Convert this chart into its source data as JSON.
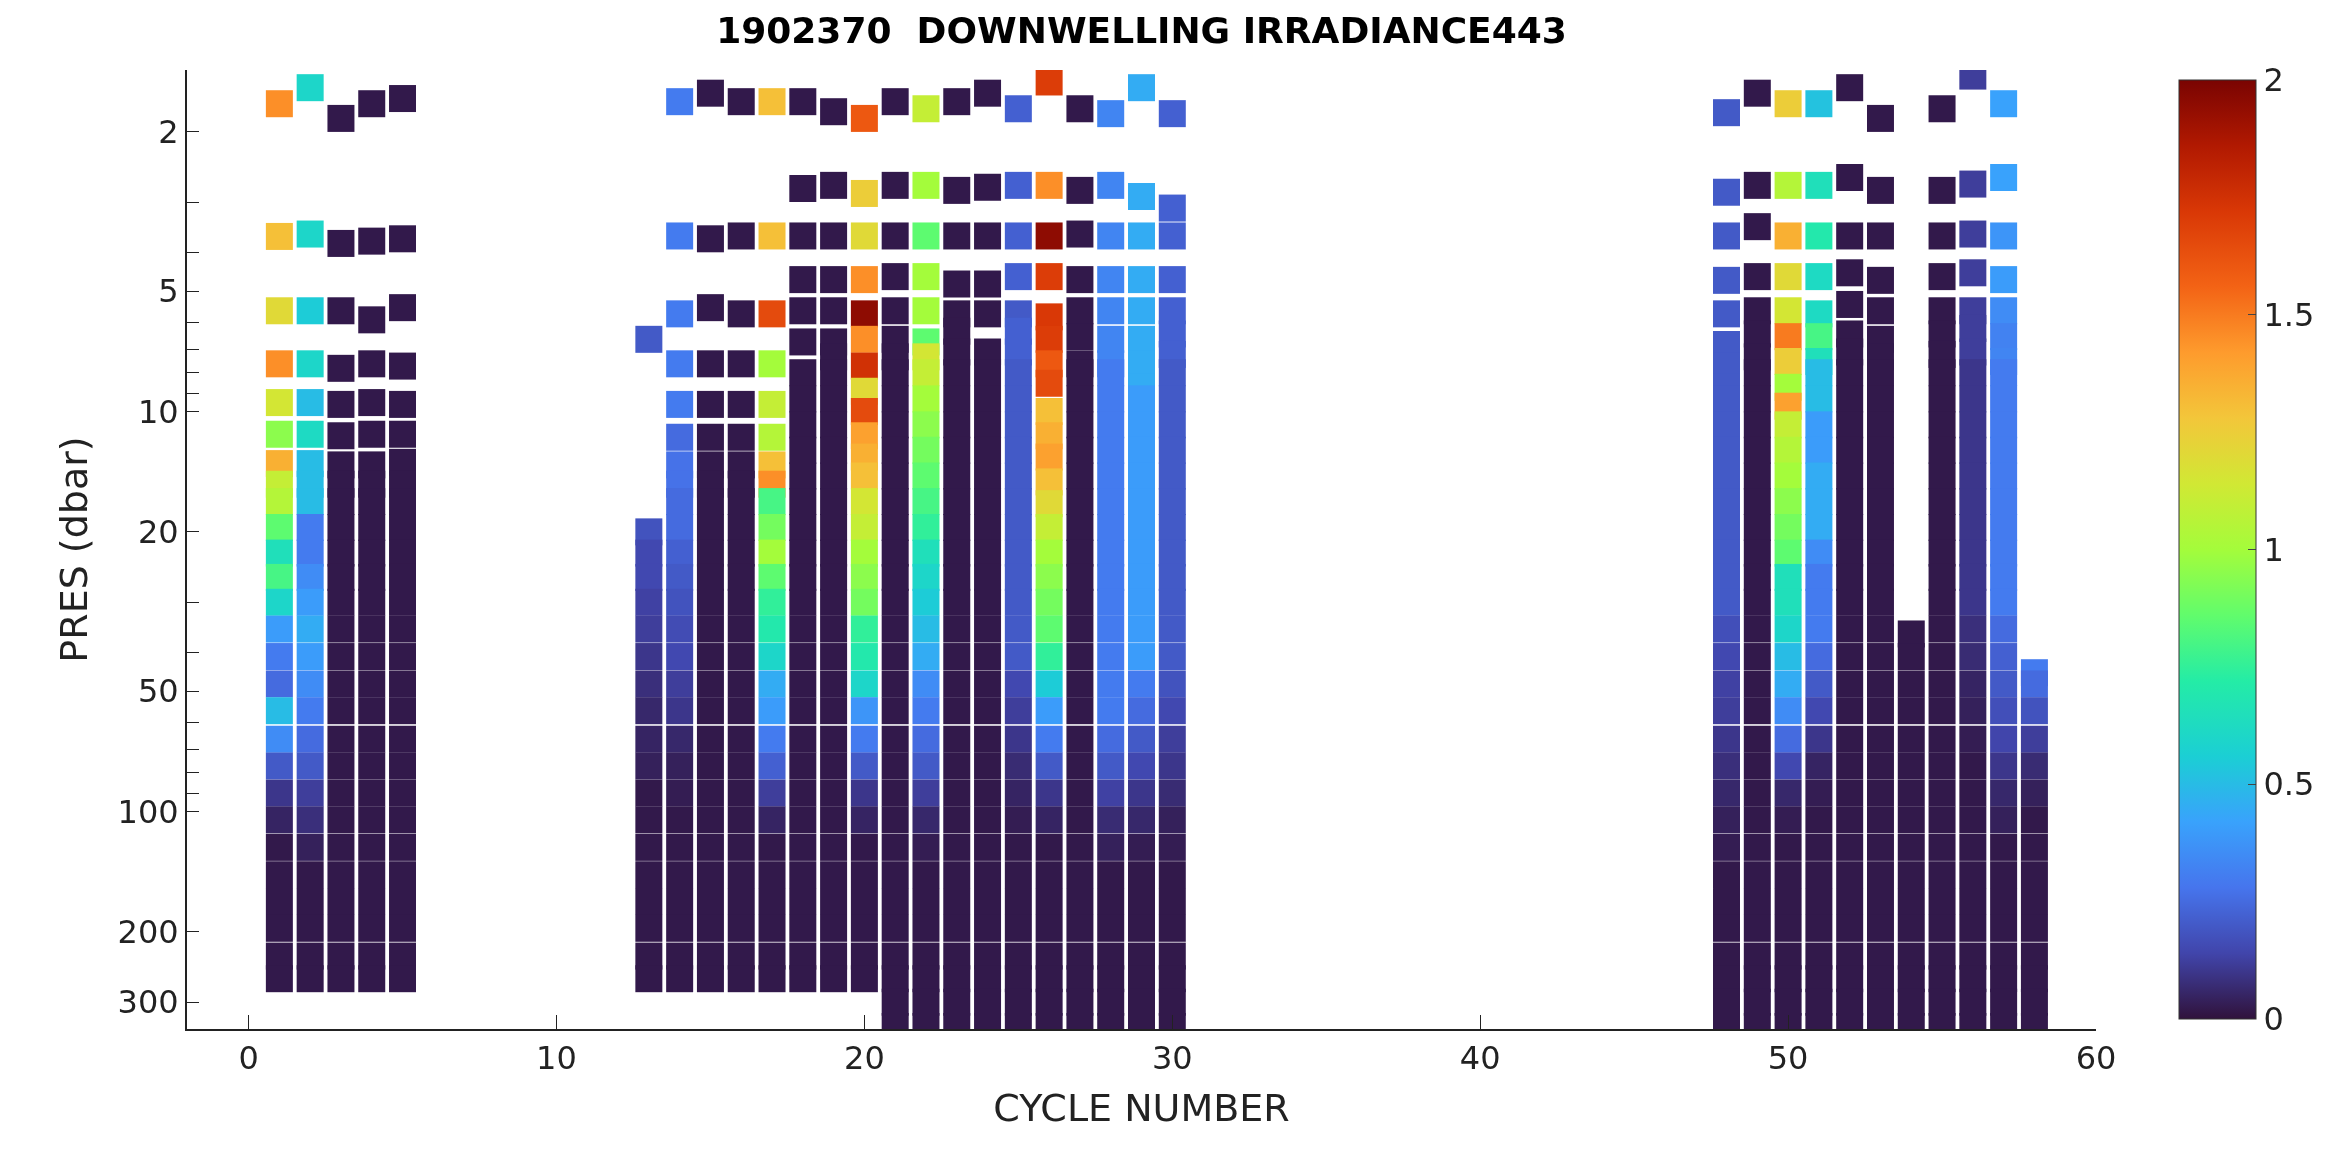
{
  "chart_data": {
    "type": "scatter",
    "title": "1902370  DOWNWELLING IRRADIANCE443",
    "xlabel": "CYCLE NUMBER",
    "ylabel": "PRES (dbar)",
    "log": "y",
    "marker": "square",
    "xlim": [
      -2,
      60
    ],
    "xticks": [
      0,
      10,
      20,
      30,
      40,
      50,
      60
    ],
    "ylim": [
      350,
      1.4
    ],
    "yticks": [
      2,
      {
        "value": 3,
        "label": null
      },
      {
        "value": 4,
        "label": null
      },
      5,
      {
        "value": 6,
        "label": null
      },
      {
        "value": 7,
        "label": null
      },
      {
        "value": 8,
        "label": null
      },
      {
        "value": 9,
        "label": null
      },
      10,
      20,
      {
        "value": 30,
        "label": null
      },
      {
        "value": 40,
        "label": null
      },
      50,
      {
        "value": 60,
        "label": null
      },
      {
        "value": 70,
        "label": null
      },
      {
        "value": 80,
        "label": null
      },
      {
        "value": 90,
        "label": null
      },
      100,
      200,
      300
    ],
    "clim": [
      0,
      2
    ],
    "cticks": [
      0,
      0.5,
      1,
      1.5,
      2
    ],
    "x": [
      1,
      1,
      1,
      1,
      1,
      1,
      1,
      1,
      1,
      1,
      1,
      1,
      1,
      1,
      1,
      1,
      1,
      1,
      1,
      1,
      1,
      1,
      1,
      1,
      1,
      1,
      1,
      2,
      2,
      2,
      2,
      2,
      2,
      2,
      2,
      2,
      2,
      2,
      2,
      2,
      2,
      2,
      2,
      2,
      2,
      2,
      2,
      2,
      2,
      2,
      2,
      2,
      2,
      2,
      3,
      3,
      3,
      3,
      3,
      3,
      3,
      3,
      3,
      3,
      3,
      3,
      3,
      3,
      3,
      3,
      3,
      3,
      3,
      3,
      3,
      3,
      3,
      3,
      3,
      3,
      3,
      4,
      4,
      4,
      4,
      4,
      4,
      4,
      4,
      4,
      4,
      4,
      4,
      4,
      4,
      4,
      4,
      4,
      4,
      4,
      4,
      4,
      4,
      4,
      4,
      4,
      4,
      4,
      5,
      5,
      5,
      5,
      5,
      5,
      5,
      5,
      5,
      5,
      5,
      5,
      5,
      5,
      5,
      5,
      5,
      5,
      5,
      5,
      5,
      5,
      5,
      5,
      5,
      5,
      5,
      13,
      13,
      13,
      13,
      13,
      13,
      13,
      13,
      13,
      13,
      13,
      13,
      13,
      13,
      13,
      13,
      13,
      13,
      13,
      14,
      14,
      14,
      14,
      14,
      14,
      14,
      14,
      14,
      14,
      14,
      14,
      14,
      14,
      14,
      14,
      14,
      14,
      14,
      14,
      14,
      14,
      14,
      14,
      14,
      14,
      14,
      15,
      15,
      15,
      15,
      15,
      15,
      15,
      15,
      15,
      15,
      15,
      15,
      15,
      15,
      15,
      15,
      15,
      15,
      15,
      15,
      15,
      15,
      15,
      15,
      15,
      15,
      15,
      16,
      16,
      16,
      16,
      16,
      16,
      16,
      16,
      16,
      16,
      16,
      16,
      16,
      16,
      16,
      16,
      16,
      16,
      16,
      16,
      16,
      16,
      16,
      16,
      16,
      16,
      16,
      17,
      17,
      17,
      17,
      17,
      17,
      17,
      17,
      17,
      17,
      17,
      17,
      17,
      17,
      17,
      17,
      17,
      17,
      17,
      17,
      17,
      17,
      17,
      17,
      17,
      17,
      17,
      18,
      18,
      18,
      18,
      18,
      18,
      18,
      18,
      18,
      18,
      18,
      18,
      18,
      18,
      18,
      18,
      18,
      18,
      18,
      18,
      18,
      18,
      18,
      18,
      18,
      18,
      18,
      18,
      18,
      18,
      19,
      19,
      19,
      19,
      19,
      19,
      19,
      19,
      19,
      19,
      19,
      19,
      19,
      19,
      19,
      19,
      19,
      19,
      19,
      19,
      19,
      19,
      19,
      19,
      19,
      19,
      19,
      19,
      19,
      19,
      19,
      20,
      20,
      20,
      20,
      20,
      20,
      20,
      20,
      20,
      20,
      20,
      20,
      20,
      20,
      20,
      20,
      20,
      20,
      20,
      20,
      20,
      20,
      20,
      20,
      20,
      20,
      20,
      20,
      20,
      20,
      20,
      21,
      21,
      21,
      21,
      21,
      21,
      21,
      21,
      21,
      21,
      21,
      21,
      21,
      21,
      21,
      21,
      21,
      21,
      21,
      21,
      21,
      21,
      21,
      21,
      21,
      21,
      21,
      21,
      21,
      21,
      21,
      21,
      21,
      22,
      22,
      22,
      22,
      22,
      22,
      22,
      22,
      22,
      22,
      22,
      22,
      22,
      22,
      22,
      22,
      22,
      22,
      22,
      22,
      22,
      22,
      22,
      22,
      22,
      22,
      22,
      22,
      22,
      22,
      22,
      22,
      22,
      23,
      23,
      23,
      23,
      23,
      23,
      23,
      23,
      23,
      23,
      23,
      23,
      23,
      23,
      23,
      23,
      23,
      23,
      23,
      23,
      23,
      23,
      23,
      23,
      23,
      23,
      23,
      23,
      23,
      23,
      23,
      23,
      23,
      24,
      24,
      24,
      24,
      24,
      24,
      24,
      24,
      24,
      24,
      24,
      24,
      24,
      24,
      24,
      24,
      24,
      24,
      24,
      24,
      24,
      24,
      24,
      24,
      24,
      24,
      24,
      24,
      24,
      24,
      24,
      24,
      25,
      25,
      25,
      25,
      25,
      25,
      25,
      25,
      25,
      25,
      25,
      25,
      25,
      25,
      25,
      25,
      25,
      25,
      25,
      25,
      25,
      25,
      25,
      25,
      25,
      25,
      25,
      25,
      25,
      25,
      25,
      25,
      25,
      26,
      26,
      26,
      26,
      26,
      26,
      26,
      26,
      26,
      26,
      26,
      26,
      26,
      26,
      26,
      26,
      26,
      26,
      26,
      26,
      26,
      26,
      26,
      26,
      26,
      26,
      26,
      26,
      26,
      26,
      26,
      26,
      26,
      27,
      27,
      27,
      27,
      27,
      27,
      27,
      27,
      27,
      27,
      27,
      27,
      27,
      27,
      27,
      27,
      27,
      27,
      27,
      27,
      27,
      27,
      27,
      27,
      27,
      27,
      27,
      27,
      27,
      27,
      27,
      27,
      27,
      28,
      28,
      28,
      28,
      28,
      28,
      28,
      28,
      28,
      28,
      28,
      28,
      28,
      28,
      28,
      28,
      28,
      28,
      28,
      28,
      28,
      28,
      28,
      28,
      28,
      28,
      28,
      28,
      28,
      28,
      28,
      28,
      28,
      29,
      29,
      29,
      29,
      29,
      29,
      29,
      29,
      29,
      29,
      29,
      29,
      29,
      29,
      29,
      29,
      29,
      29,
      29,
      29,
      29,
      29,
      29,
      29,
      29,
      29,
      29,
      29,
      29,
      29,
      29,
      29,
      29,
      30,
      30,
      30,
      30,
      30,
      30,
      30,
      30,
      30,
      30,
      30,
      30,
      30,
      30,
      30,
      30,
      30,
      30,
      30,
      30,
      30,
      30,
      30,
      30,
      30,
      30,
      30,
      30,
      30,
      30,
      30,
      30,
      30,
      48,
      48,
      48,
      48,
      48,
      48,
      48,
      48,
      48,
      48,
      48,
      48,
      48,
      48,
      48,
      48,
      48,
      48,
      48,
      48,
      48,
      48,
      48,
      48,
      48,
      48,
      48,
      48,
      48,
      48,
      48,
      48,
      48,
      49,
      49,
      49,
      49,
      49,
      49,
      49,
      49,
      49,
      49,
      49,
      49,
      49,
      49,
      49,
      49,
      49,
      49,
      49,
      49,
      49,
      49,
      49,
      49,
      49,
      49,
      49,
      49,
      49,
      49,
      49,
      49,
      49,
      50,
      50,
      50,
      50,
      50,
      50,
      50,
      50,
      50,
      50,
      50,
      50,
      50,
      50,
      50,
      50,
      50,
      50,
      50,
      50,
      50,
      50,
      50,
      50,
      50,
      50,
      50,
      50,
      50,
      50,
      50,
      50,
      50,
      51,
      51,
      51,
      51,
      51,
      51,
      51,
      51,
      51,
      51,
      51,
      51,
      51,
      51,
      51,
      51,
      51,
      51,
      51,
      51,
      51,
      51,
      51,
      51,
      51,
      51,
      51,
      51,
      51,
      51,
      51,
      51,
      51,
      52,
      52,
      52,
      52,
      52,
      52,
      52,
      52,
      52,
      52,
      52,
      52,
      52,
      52,
      52,
      52,
      52,
      52,
      52,
      52,
      52,
      52,
      52,
      52,
      52,
      52,
      52,
      52,
      52,
      52,
      52,
      52,
      52,
      53,
      53,
      53,
      53,
      53,
      53,
      53,
      53,
      53,
      53,
      53,
      53,
      53,
      53,
      53,
      53,
      53,
      53,
      53,
      53,
      53,
      53,
      53,
      53,
      53,
      53,
      53,
      53,
      53,
      53,
      53,
      53,
      53,
      54,
      54,
      54,
      54,
      54,
      54,
      54,
      54,
      54,
      54,
      54,
      54,
      54,
      54,
      54,
      54,
      55,
      55,
      55,
      55,
      55,
      55,
      55,
      55,
      55,
      55,
      55,
      55,
      55,
      55,
      55,
      55,
      55,
      55,
      55,
      55,
      55,
      55,
      55,
      55,
      55,
      55,
      55,
      55,
      55,
      55,
      55,
      55,
      55,
      56,
      56,
      56,
      56,
      56,
      56,
      56,
      56,
      56,
      56,
      56,
      56,
      56,
      56,
      56,
      56,
      56,
      56,
      56,
      56,
      56,
      56,
      56,
      56,
      56,
      56,
      56,
      56,
      56,
      56,
      56,
      56,
      56,
      57,
      57,
      57,
      57,
      57,
      57,
      57,
      57,
      57,
      57,
      57,
      57,
      57,
      57,
      57,
      57,
      57,
      57,
      57,
      57,
      57,
      57,
      57,
      57,
      57,
      57,
      57,
      57,
      57,
      57,
      57,
      57,
      57,
      58,
      58,
      58,
      58,
      58,
      58,
      58,
      58,
      58,
      58,
      58,
      58,
      58,
      58,
      58
    ],
    "values": [
      1.7,
      3.65,
      5.6,
      7.6,
      9.5,
      11.4,
      13.5,
      15.2,
      16.8,
      19.5,
      22.6,
      26,
      30,
      35,
      41,
      48,
      56,
      66,
      77,
      90,
      105,
      123,
      144,
      168,
      196,
      230,
      262,
      1.55,
      3.6,
      5.6,
      7.6,
      9.5,
      11.4,
      13.5,
      15.2,
      16.8,
      19.5,
      22.6,
      26,
      30,
      35,
      41,
      48,
      56,
      66,
      77,
      90,
      105,
      123,
      144,
      168,
      196,
      230,
      262,
      1.85,
      3.8,
      5.6,
      7.8,
      9.6,
      11.5,
      13.6,
      15.2,
      16.8,
      19.5,
      22.6,
      26,
      30,
      35,
      41,
      48,
      56,
      66,
      77,
      90,
      105,
      123,
      144,
      168,
      196,
      230,
      262,
      1.7,
      3.75,
      5.9,
      7.6,
      9.5,
      11.4,
      13.6,
      15.2,
      16.8,
      19.5,
      22.6,
      26,
      30,
      35,
      41,
      48,
      56,
      66,
      77,
      90,
      105,
      123,
      144,
      168,
      196,
      230,
      262,
      1.65,
      3.7,
      5.5,
      7.7,
      9.6,
      11.4,
      13.4,
      15.2,
      16.8,
      19.5,
      22.6,
      26,
      30,
      35,
      41,
      48,
      56,
      66,
      77,
      90,
      105,
      123,
      144,
      168,
      196,
      230,
      262,
      6.6,
      20,
      22.6,
      26,
      30,
      35,
      41,
      48,
      56,
      66,
      77,
      90,
      105,
      123,
      144,
      168,
      196,
      230,
      262,
      1.68,
      3.64,
      5.7,
      7.6,
      9.6,
      11.6,
      13.6,
      15.2,
      16.8,
      19.5,
      22.6,
      26,
      30,
      35,
      41,
      48,
      56,
      66,
      77,
      90,
      105,
      123,
      144,
      168,
      196,
      230,
      262,
      1.6,
      3.7,
      5.5,
      7.6,
      9.6,
      11.6,
      13.6,
      15.2,
      16.8,
      19.5,
      22.6,
      26,
      30,
      35,
      41,
      48,
      56,
      66,
      77,
      90,
      105,
      123,
      144,
      168,
      196,
      230,
      262,
      1.68,
      3.64,
      5.7,
      7.6,
      9.6,
      11.6,
      13.6,
      15.2,
      16.8,
      19.5,
      22.6,
      26,
      30,
      35,
      41,
      48,
      56,
      66,
      77,
      90,
      105,
      123,
      144,
      168,
      196,
      230,
      262,
      1.68,
      3.64,
      5.7,
      7.6,
      9.6,
      11.6,
      13.6,
      15.2,
      16.8,
      19.5,
      22.6,
      26,
      30,
      35,
      41,
      48,
      56,
      66,
      77,
      90,
      105,
      123,
      144,
      168,
      196,
      230,
      262,
      1.68,
      2.77,
      3.64,
      4.68,
      5.6,
      6.7,
      8,
      9.3,
      10.8,
      12.5,
      14.5,
      16.8,
      19.5,
      22.6,
      26,
      30,
      35,
      41,
      48,
      56,
      66,
      77,
      90,
      105,
      123,
      144,
      168,
      196,
      230,
      262,
      1.78,
      2.72,
      3.64,
      4.68,
      5.6,
      6.7,
      7.3,
      8,
      9.3,
      10.8,
      12.5,
      14.5,
      16.8,
      19.5,
      22.6,
      26,
      30,
      35,
      41,
      48,
      56,
      66,
      77,
      90,
      105,
      123,
      144,
      168,
      196,
      230,
      262,
      1.85,
      2.85,
      3.64,
      4.68,
      5.7,
      6.6,
      7.7,
      8.9,
      10,
      11.5,
      13,
      14.5,
      16.8,
      19.5,
      22.6,
      26,
      30,
      35,
      41,
      48,
      56,
      66,
      77,
      90,
      105,
      123,
      144,
      168,
      196,
      230,
      262,
      1.68,
      2.72,
      3.64,
      4.6,
      5.6,
      6.6,
      7.3,
      8,
      9.3,
      10.8,
      12.5,
      14.5,
      16.8,
      19.5,
      22.6,
      26,
      30,
      35,
      41,
      48,
      56,
      66,
      77,
      90,
      105,
      123,
      144,
      168,
      196,
      230,
      262,
      300,
      345,
      1.75,
      2.72,
      3.64,
      4.6,
      5.6,
      6.7,
      7.3,
      8,
      9.3,
      10.8,
      12.5,
      14.5,
      16.8,
      19.5,
      22.6,
      26,
      30,
      35,
      41,
      48,
      56,
      66,
      77,
      90,
      105,
      123,
      144,
      168,
      196,
      230,
      262,
      300,
      345,
      1.68,
      2.8,
      3.64,
      4.8,
      5.7,
      6.3,
      7.1,
      8,
      9.3,
      10.8,
      12.5,
      14.5,
      16.8,
      19.5,
      22.6,
      26,
      30,
      35,
      41,
      48,
      56,
      66,
      77,
      90,
      105,
      123,
      144,
      168,
      196,
      230,
      262,
      300,
      345,
      1.6,
      2.75,
      3.64,
      4.8,
      5.7,
      7.1,
      8,
      9.3,
      10.8,
      12.5,
      14.5,
      16.8,
      19.5,
      22.6,
      26,
      30,
      35,
      41,
      48,
      56,
      66,
      77,
      90,
      105,
      123,
      144,
      168,
      196,
      230,
      262,
      300,
      345,
      1.75,
      2.72,
      3.64,
      4.6,
      5.7,
      6.3,
      7.1,
      8,
      9.3,
      10.8,
      12.5,
      14.5,
      16.8,
      19.5,
      22.6,
      26,
      30,
      35,
      41,
      48,
      56,
      66,
      77,
      90,
      105,
      123,
      144,
      168,
      196,
      230,
      262,
      300,
      345,
      1.5,
      2.72,
      3.64,
      4.6,
      5.8,
      6.6,
      7.6,
      8.5,
      10,
      11.5,
      13,
      15,
      17,
      19.5,
      22.6,
      26,
      30,
      35,
      41,
      48,
      56,
      66,
      77,
      90,
      105,
      123,
      144,
      168,
      196,
      230,
      262,
      300,
      345,
      1.75,
      2.8,
      3.6,
      4.68,
      5.6,
      6.5,
      7.6,
      8,
      9.3,
      10.8,
      12.5,
      14.5,
      16.8,
      19.5,
      22.6,
      26,
      30,
      35,
      41,
      48,
      56,
      66,
      77,
      90,
      105,
      123,
      144,
      168,
      196,
      230,
      262,
      300,
      345,
      1.8,
      2.72,
      3.64,
      4.68,
      5.6,
      6.6,
      7.6,
      8,
      9.3,
      10.8,
      12.5,
      14.5,
      16.8,
      19.5,
      22.6,
      26,
      30,
      35,
      41,
      48,
      56,
      66,
      77,
      90,
      105,
      123,
      144,
      168,
      196,
      230,
      262,
      300,
      345,
      1.55,
      2.9,
      3.64,
      4.68,
      5.6,
      6.6,
      7.6,
      8.7,
      9.3,
      10.8,
      12.5,
      14.5,
      16.8,
      19.5,
      22.6,
      26,
      30,
      35,
      41,
      48,
      56,
      66,
      77,
      90,
      105,
      123,
      144,
      168,
      196,
      230,
      262,
      300,
      345,
      1.8,
      3.1,
      3.64,
      4.68,
      5.6,
      6.4,
      7.2,
      8,
      9.3,
      10.8,
      12.5,
      14.5,
      16.8,
      19.5,
      22.6,
      26,
      30,
      35,
      41,
      48,
      56,
      66,
      77,
      90,
      105,
      123,
      144,
      168,
      196,
      230,
      262,
      300,
      345,
      1.79,
      2.83,
      3.64,
      4.7,
      5.7,
      6.8,
      7.7,
      8.7,
      9.3,
      10.8,
      12.5,
      14.5,
      16.8,
      19.5,
      22.6,
      26,
      30,
      35,
      41,
      48,
      56,
      66,
      77,
      90,
      105,
      123,
      144,
      168,
      196,
      230,
      262,
      300,
      345,
      1.6,
      2.72,
      3.45,
      4.6,
      5.6,
      6.4,
      7.3,
      8,
      9.3,
      10.8,
      12.5,
      14.5,
      16.8,
      19.5,
      22.6,
      26,
      30,
      35,
      41,
      48,
      56,
      66,
      77,
      90,
      105,
      123,
      144,
      168,
      196,
      230,
      262,
      300,
      345,
      1.7,
      2.72,
      3.64,
      4.6,
      5.6,
      6.5,
      7.5,
      8.7,
      9.7,
      10.8,
      12.5,
      14.5,
      16.8,
      19.5,
      22.6,
      26,
      30,
      35,
      41,
      48,
      56,
      66,
      77,
      90,
      105,
      123,
      144,
      168,
      196,
      230,
      262,
      300,
      345,
      1.7,
      2.72,
      3.64,
      4.6,
      5.7,
      6.5,
      7.5,
      8,
      9.3,
      10.8,
      12.5,
      14.5,
      16.8,
      19.5,
      22.6,
      26,
      30,
      35,
      41,
      48,
      56,
      66,
      77,
      90,
      105,
      123,
      144,
      168,
      196,
      230,
      262,
      300,
      345,
      1.55,
      2.6,
      3.64,
      4.5,
      5.4,
      6.4,
      7.1,
      8,
      9.3,
      10.8,
      12.5,
      14.5,
      16.8,
      19.5,
      22.6,
      26,
      30,
      35,
      41,
      48,
      56,
      66,
      77,
      90,
      105,
      123,
      144,
      168,
      196,
      230,
      262,
      300,
      345,
      1.85,
      2.8,
      3.64,
      4.7,
      5.6,
      6.6,
      7.3,
      8,
      9.3,
      10.8,
      12.5,
      14.5,
      16.8,
      19.5,
      22.6,
      26,
      30,
      35,
      41,
      48,
      56,
      66,
      77,
      90,
      105,
      123,
      144,
      168,
      196,
      230,
      262,
      300,
      345,
      36,
      41,
      48,
      56,
      66,
      77,
      90,
      105,
      123,
      144,
      168,
      196,
      230,
      262,
      300,
      345,
      1.75,
      2.8,
      3.64,
      4.6,
      5.6,
      6.4,
      7.2,
      8,
      9.3,
      10.8,
      12.5,
      14.5,
      16.8,
      19.5,
      22.6,
      26,
      30,
      35,
      41,
      48,
      56,
      66,
      77,
      90,
      105,
      123,
      144,
      168,
      196,
      230,
      262,
      300,
      345,
      1.45,
      2.7,
      3.6,
      4.5,
      5.6,
      6.2,
      7.1,
      8,
      9.3,
      10.8,
      12.5,
      14.5,
      16.8,
      19.5,
      22.6,
      26,
      30,
      35,
      41,
      48,
      56,
      66,
      77,
      90,
      105,
      123,
      144,
      168,
      196,
      230,
      262,
      300,
      345,
      1.7,
      2.6,
      3.64,
      4.68,
      5.6,
      6.5,
      7.5,
      8,
      9.3,
      10.8,
      12.5,
      14.5,
      16.8,
      19.5,
      22.6,
      26,
      30,
      35,
      41,
      48,
      56,
      66,
      77,
      90,
      105,
      123,
      144,
      168,
      196,
      230,
      262,
      300,
      345,
      45,
      48,
      56,
      66,
      77,
      90,
      105,
      123,
      144,
      168,
      196,
      230,
      262,
      300,
      345
    ],
    "cvalues": [
      1.45,
      1.3,
      1.2,
      1.45,
      1.15,
      0.95,
      1.35,
      1.1,
      1.05,
      0.85,
      0.65,
      0.8,
      0.6,
      0.4,
      0.3,
      0.25,
      0.5,
      0.35,
      0.2,
      0.1,
      0.05,
      0.02,
      0.02,
      0.02,
      0.02,
      0.02,
      0.02,
      0.6,
      0.6,
      0.55,
      0.6,
      0.5,
      0.62,
      0.5,
      0.5,
      0.5,
      0.3,
      0.3,
      0.35,
      0.4,
      0.45,
      0.4,
      0.35,
      0.3,
      0.25,
      0.2,
      0.12,
      0.08,
      0.04,
      0.02,
      0.02,
      0.02,
      0.02,
      0.02,
      0.02,
      0.02,
      0.02,
      0.02,
      0.02,
      0.02,
      0.02,
      0.02,
      0.02,
      0.02,
      0.02,
      0.02,
      0.02,
      0.02,
      0.02,
      0.02,
      0.02,
      0.02,
      0.02,
      0.02,
      0.02,
      0.02,
      0.02,
      0.02,
      0.02,
      0.02,
      0.02,
      0.02,
      0.02,
      0.02,
      0.02,
      0.02,
      0.02,
      0.02,
      0.02,
      0.02,
      0.02,
      0.02,
      0.02,
      0.02,
      0.02,
      0.02,
      0.02,
      0.02,
      0.02,
      0.02,
      0.02,
      0.02,
      0.02,
      0.02,
      0.02,
      0.02,
      0.02,
      0.02,
      0.02,
      0.02,
      0.02,
      0.02,
      0.02,
      0.02,
      0.02,
      0.02,
      0.02,
      0.02,
      0.02,
      0.02,
      0.02,
      0.02,
      0.02,
      0.02,
      0.02,
      0.02,
      0.02,
      0.02,
      0.02,
      0.02,
      0.02,
      0.02,
      0.02,
      0.02,
      0.02,
      0.2,
      0.18,
      0.15,
      0.15,
      0.13,
      0.12,
      0.1,
      0.08,
      0.06,
      0.05,
      0.04,
      0.02,
      0.02,
      0.02,
      0.02,
      0.02,
      0.02,
      0.02,
      0.02,
      0.3,
      0.3,
      0.3,
      0.3,
      0.3,
      0.25,
      0.27,
      0.27,
      0.25,
      0.25,
      0.22,
      0.2,
      0.18,
      0.16,
      0.15,
      0.12,
      0.1,
      0.06,
      0.04,
      0.03,
      0.02,
      0.02,
      0.02,
      0.02,
      0.02,
      0.02,
      0.02,
      0.02,
      0.02,
      0.02,
      0.02,
      0.02,
      0.02,
      0.02,
      0.02,
      0.02,
      0.02,
      0.02,
      0.02,
      0.02,
      0.02,
      0.02,
      0.02,
      0.02,
      0.02,
      0.02,
      0.02,
      0.02,
      0.02,
      0.02,
      0.02,
      0.02,
      0.02,
      0.02,
      0.02,
      0.02,
      0.02,
      0.02,
      0.02,
      0.02,
      0.02,
      0.02,
      0.02,
      0.02,
      0.02,
      0.02,
      0.02,
      0.02,
      0.02,
      0.02,
      0.02,
      0.02,
      0.02,
      0.02,
      0.02,
      0.02,
      0.02,
      0.02,
      0.02,
      0.02,
      0.02,
      1.3,
      1.3,
      1.65,
      1.0,
      1.1,
      1.05,
      1.3,
      1.45,
      0.8,
      0.9,
      1.0,
      0.85,
      0.75,
      0.7,
      0.6,
      0.45,
      0.4,
      0.3,
      0.22,
      0.12,
      0.05,
      0.02,
      0.02,
      0.02,
      0.02,
      0.02,
      0.02,
      0.02,
      0.02,
      0.02,
      0.02,
      0.02,
      0.02,
      0.02,
      0.02,
      0.02,
      0.02,
      0.02,
      0.02,
      0.02,
      0.02,
      0.02,
      0.02,
      0.02,
      0.02,
      0.02,
      0.02,
      0.02,
      0.02,
      0.02,
      0.02,
      0.02,
      0.02,
      0.02,
      0.02,
      0.02,
      0.02,
      0.02,
      0.02,
      0.02,
      0.02,
      0.02,
      0.02,
      0.02,
      0.02,
      0.02,
      0.02,
      0.02,
      0.02,
      0.02,
      0.02,
      0.02,
      0.02,
      0.02,
      0.02,
      0.02,
      0.02,
      0.02,
      0.02,
      0.02,
      0.02,
      0.02,
      0.02,
      0.02,
      0.02,
      0.02,
      0.02,
      0.02,
      1.6,
      1.25,
      1.2,
      1.45,
      1.95,
      1.45,
      1.75,
      1.2,
      1.65,
      1.4,
      1.35,
      1.3,
      1.15,
      1.1,
      1.0,
      0.95,
      0.9,
      0.75,
      0.7,
      0.6,
      0.38,
      0.3,
      0.2,
      0.1,
      0.05,
      0.02,
      0.02,
      0.02,
      0.02,
      0.02,
      0.02,
      0.02,
      0.02,
      0.02,
      0.02,
      0.02,
      0.02,
      0.02,
      0.02,
      0.02,
      0.02,
      0.02,
      0.02,
      0.02,
      0.02,
      0.02,
      0.02,
      0.02,
      0.02,
      0.02,
      0.02,
      0.02,
      0.02,
      0.02,
      0.02,
      0.02,
      0.02,
      0.02,
      0.02,
      0.02,
      0.02,
      0.02,
      0.02,
      0.02,
      1.1,
      1.0,
      0.85,
      1.0,
      1.0,
      0.85,
      1.15,
      1.1,
      1.0,
      0.95,
      0.9,
      0.85,
      0.8,
      0.75,
      0.65,
      0.6,
      0.55,
      0.5,
      0.45,
      0.35,
      0.3,
      0.25,
      0.2,
      0.12,
      0.06,
      0.03,
      0.02,
      0.02,
      0.02,
      0.02,
      0.02,
      0.02,
      0.02,
      0.02,
      0.02,
      0.02,
      0.02,
      0.02,
      0.02,
      0.02,
      0.02,
      0.02,
      0.02,
      0.02,
      0.02,
      0.02,
      0.02,
      0.02,
      0.02,
      0.02,
      0.02,
      0.02,
      0.02,
      0.02,
      0.02,
      0.02,
      0.02,
      0.02,
      0.02,
      0.02,
      0.02,
      0.02,
      0.02,
      0.02,
      0.02,
      0.02,
      0.02,
      0.02,
      0.02,
      0.02,
      0.02,
      0.02,
      0.02,
      0.02,
      0.02,
      0.02,
      0.02,
      0.02,
      0.02,
      0.02,
      0.02,
      0.02,
      0.02,
      0.02,
      0.02,
      0.02,
      0.02,
      0.02,
      0.02,
      0.02,
      0.02,
      0.02,
      0.02,
      0.02,
      0.02,
      0.02,
      0.02,
      0.02,
      0.22,
      0.22,
      0.22,
      0.22,
      0.2,
      0.22,
      0.22,
      0.2,
      0.2,
      0.2,
      0.2,
      0.2,
      0.2,
      0.2,
      0.2,
      0.2,
      0.2,
      0.2,
      0.2,
      0.15,
      0.12,
      0.1,
      0.07,
      0.05,
      0.03,
      0.02,
      0.02,
      0.02,
      0.02,
      0.02,
      0.02,
      0.02,
      0.02,
      1.7,
      1.45,
      1.95,
      1.7,
      1.72,
      1.7,
      1.6,
      1.65,
      1.3,
      1.35,
      1.4,
      1.3,
      1.2,
      1.1,
      1.0,
      0.95,
      0.9,
      0.85,
      0.75,
      0.55,
      0.4,
      0.3,
      0.2,
      0.1,
      0.05,
      0.02,
      0.02,
      0.02,
      0.02,
      0.02,
      0.02,
      0.02,
      0.02,
      0.02,
      0.02,
      0.02,
      0.02,
      0.02,
      0.02,
      0.02,
      0.02,
      0.02,
      0.02,
      0.02,
      0.02,
      0.02,
      0.02,
      0.02,
      0.02,
      0.02,
      0.02,
      0.02,
      0.02,
      0.02,
      0.02,
      0.02,
      0.02,
      0.02,
      0.02,
      0.02,
      0.02,
      0.02,
      0.02,
      0.02,
      0.02,
      0.02,
      0.33,
      0.33,
      0.33,
      0.33,
      0.33,
      0.33,
      0.33,
      0.3,
      0.3,
      0.3,
      0.3,
      0.3,
      0.3,
      0.3,
      0.3,
      0.3,
      0.3,
      0.3,
      0.3,
      0.3,
      0.3,
      0.25,
      0.2,
      0.13,
      0.07,
      0.04,
      0.02,
      0.02,
      0.02,
      0.02,
      0.02,
      0.02,
      0.02,
      0.45,
      0.45,
      0.45,
      0.45,
      0.45,
      0.45,
      0.45,
      0.45,
      0.4,
      0.4,
      0.4,
      0.4,
      0.4,
      0.4,
      0.4,
      0.4,
      0.4,
      0.4,
      0.4,
      0.3,
      0.25,
      0.2,
      0.15,
      0.1,
      0.06,
      0.03,
      0.02,
      0.02,
      0.02,
      0.02,
      0.02,
      0.02,
      0.02,
      0.22,
      0.22,
      0.22,
      0.22,
      0.22,
      0.22,
      0.22,
      0.2,
      0.2,
      0.2,
      0.2,
      0.2,
      0.2,
      0.2,
      0.2,
      0.2,
      0.2,
      0.2,
      0.2,
      0.18,
      0.15,
      0.12,
      0.1,
      0.07,
      0.04,
      0.03,
      0.02,
      0.02,
      0.02,
      0.02,
      0.02,
      0.02,
      0.02,
      0.2,
      0.2,
      0.2,
      0.2,
      0.2,
      0.2,
      0.2,
      0.2,
      0.2,
      0.2,
      0.2,
      0.2,
      0.2,
      0.2,
      0.2,
      0.2,
      0.2,
      0.17,
      0.15,
      0.13,
      0.12,
      0.1,
      0.08,
      0.06,
      0.04,
      0.03,
      0.02,
      0.02,
      0.02,
      0.02,
      0.02,
      0.02,
      0.02,
      0.02,
      0.02,
      0.02,
      0.02,
      0.02,
      0.02,
      0.02,
      0.02,
      0.02,
      0.02,
      0.02,
      0.02,
      0.02,
      0.02,
      0.02,
      0.02,
      0.02,
      0.02,
      0.02,
      0.02,
      0.02,
      0.02,
      0.02,
      0.02,
      0.02,
      0.02,
      0.02,
      0.02,
      0.02,
      0.02,
      0.02,
      0.02,
      0.02,
      1.25,
      1.05,
      1.35,
      1.2,
      1.15,
      1.5,
      1.25,
      1.0,
      1.4,
      1.1,
      1.05,
      1.0,
      0.95,
      0.9,
      0.85,
      0.65,
      0.65,
      0.6,
      0.5,
      0.45,
      0.35,
      0.25,
      0.15,
      0.06,
      0.03,
      0.02,
      0.02,
      0.02,
      0.02,
      0.02,
      0.02,
      0.02,
      0.02,
      0.52,
      0.65,
      0.7,
      0.62,
      0.62,
      0.8,
      0.65,
      0.5,
      0.5,
      0.4,
      0.4,
      0.45,
      0.45,
      0.45,
      0.35,
      0.3,
      0.3,
      0.3,
      0.25,
      0.2,
      0.15,
      0.1,
      0.05,
      0.03,
      0.02,
      0.02,
      0.02,
      0.02,
      0.02,
      0.02,
      0.02,
      0.02,
      0.02,
      0.02,
      0.02,
      0.02,
      0.02,
      0.02,
      0.02,
      0.02,
      0.02,
      0.02,
      0.02,
      0.02,
      0.02,
      0.02,
      0.02,
      0.02,
      0.02,
      0.02,
      0.02,
      0.02,
      0.02,
      0.02,
      0.02,
      0.02,
      0.02,
      0.02,
      0.02,
      0.02,
      0.02,
      0.02,
      0.02,
      0.02,
      0.02,
      0.02,
      0.02,
      0.02,
      0.02,
      0.02,
      0.02,
      0.02,
      0.02,
      0.02,
      0.02,
      0.02,
      0.02,
      0.02,
      0.02,
      0.02,
      0.02,
      0.02,
      0.02,
      0.02,
      0.02,
      0.02,
      0.02,
      0.02,
      0.02,
      0.02,
      0.02,
      0.02,
      0.02,
      0.02,
      0.02,
      0.02,
      0.02,
      0.02,
      0.02,
      0.02,
      0.02,
      0.02,
      0.02,
      0.02,
      0.02,
      0.02,
      0.02,
      0.02,
      0.02,
      0.02,
      0.02,
      0.02,
      0.02,
      0.02,
      0.02,
      0.02,
      0.02,
      0.02,
      0.02,
      0.02,
      0.02,
      0.02,
      0.02,
      0.02,
      0.02,
      0.02,
      0.02,
      0.02,
      0.02,
      0.02,
      0.02,
      0.02,
      0.02,
      0.02,
      0.02,
      0.02,
      0.02,
      0.02,
      0.02,
      0.02,
      0.02,
      0.02,
      0.02,
      0.02,
      0.02,
      0.02,
      0.02,
      0.02,
      0.12,
      0.12,
      0.12,
      0.12,
      0.12,
      0.12,
      0.12,
      0.1,
      0.1,
      0.1,
      0.1,
      0.1,
      0.1,
      0.1,
      0.1,
      0.1,
      0.1,
      0.08,
      0.07,
      0.05,
      0.04,
      0.03,
      0.02,
      0.02,
      0.02,
      0.02,
      0.02,
      0.02,
      0.02,
      0.02,
      0.02,
      0.02,
      0.02,
      0.42,
      0.42,
      0.38,
      0.4,
      0.35,
      0.32,
      0.33,
      0.3,
      0.3,
      0.3,
      0.3,
      0.3,
      0.3,
      0.3,
      0.3,
      0.3,
      0.3,
      0.25,
      0.22,
      0.2,
      0.17,
      0.14,
      0.1,
      0.06,
      0.04,
      0.02,
      0.02,
      0.02,
      0.02,
      0.02,
      0.02,
      0.02,
      0.02,
      0.3,
      0.25,
      0.18,
      0.12,
      0.07,
      0.04,
      0.02,
      0.02,
      0.02,
      0.02,
      0.02,
      0.02,
      0.02,
      0.02,
      0.02
    ]
  }
}
